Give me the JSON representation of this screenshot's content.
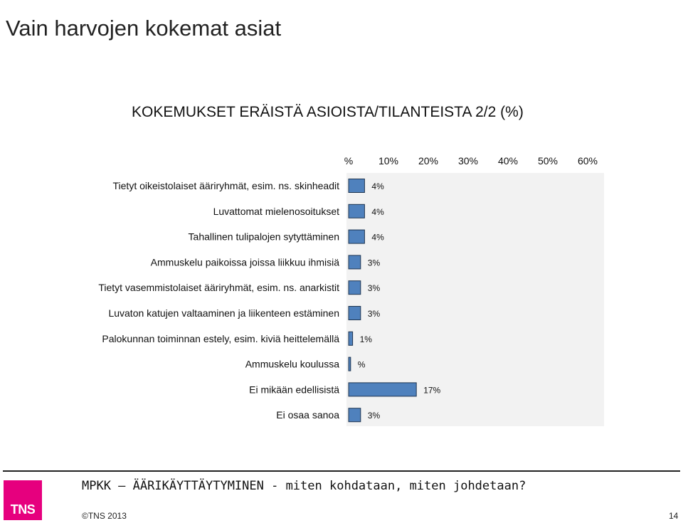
{
  "slide": {
    "title": "Vain harvojen kokemat asiat"
  },
  "chart_data": {
    "type": "bar",
    "orientation": "horizontal",
    "title": "KOKEMUKSET ERÄISTÄ ASIOISTA/TILANTEISTA 2/2 (%)",
    "xlim": [
      0,
      60
    ],
    "x_ticks": [
      "%",
      "10%",
      "20%",
      "30%",
      "40%",
      "50%",
      "60%"
    ],
    "categories": [
      "Tietyt oikeistolaiset ääriryhmät, esim. ns. skinheadit",
      "Luvattomat mielenosoitukset",
      "Tahallinen tulipalojen sytyttäminen",
      "Ammuskelu paikoissa joissa liikkuu ihmisiä",
      "Tietyt vasemmistolaiset ääriryhmät, esim. ns. anarkistit",
      "Luvaton katujen valtaaminen ja liikenteen estäminen",
      "Palokunnan toiminnan estely, esim. kiviä heittelemällä",
      "Ammuskelu koulussa",
      "Ei mikään edellisistä",
      "Ei osaa sanoa"
    ],
    "values": [
      4,
      4,
      4,
      3,
      3,
      3,
      1,
      0.5,
      17,
      3
    ],
    "data_labels": [
      "4%",
      "4%",
      "4%",
      "3%",
      "3%",
      "3%",
      "1%",
      "%",
      "17%",
      "3%"
    ],
    "bar_color": "#4f81bd",
    "plot_background": "#f2f2f2",
    "grid": false
  },
  "footer": {
    "logo_text": "TNS",
    "text": "MPKK – ÄÄRIKÄYTTÄYTYMINEN - miten kohdataan, miten johdetaan?",
    "copyright": "©TNS 2013",
    "page_number": "14"
  }
}
